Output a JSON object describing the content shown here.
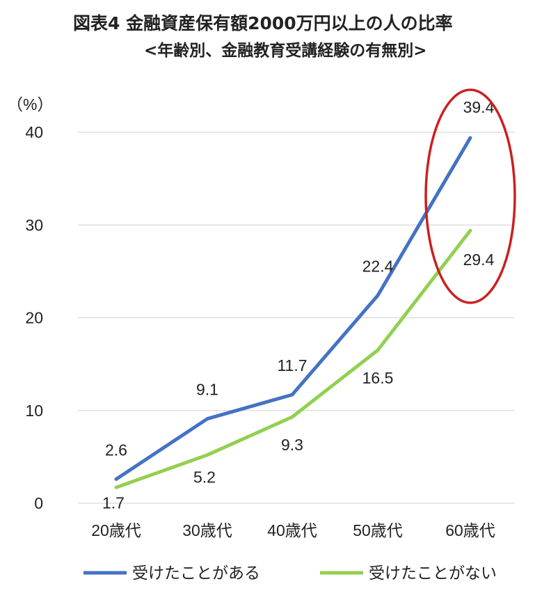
{
  "chart_data": {
    "type": "line",
    "title": "図表4 金融資産保有額2000万円以上の人の比率",
    "subtitle": "<年齢別、金融教育受講経験の有無別>",
    "ylabel": "（%）",
    "xlabel": "",
    "categories": [
      "20歳代",
      "30歳代",
      "40歳代",
      "50歳代",
      "60歳代"
    ],
    "ylim": [
      0,
      40
    ],
    "yticks": [
      0,
      10,
      20,
      30,
      40
    ],
    "grid": true,
    "legend_position": "bottom",
    "series": [
      {
        "name": "受けたことがある",
        "color": "#4472c4",
        "values": [
          2.6,
          9.1,
          11.7,
          22.4,
          39.4
        ],
        "labels": [
          "2.6",
          "9.1",
          "11.7",
          "22.4",
          "39.4"
        ]
      },
      {
        "name": "受けたことがない",
        "color": "#92d050",
        "values": [
          1.7,
          5.2,
          9.3,
          16.5,
          29.4
        ],
        "labels": [
          "1.7",
          "5.2",
          "9.3",
          "16.5",
          "29.4"
        ]
      }
    ],
    "annotation": {
      "type": "ellipse",
      "color": "#cc1f1f",
      "category": "60歳代"
    }
  }
}
